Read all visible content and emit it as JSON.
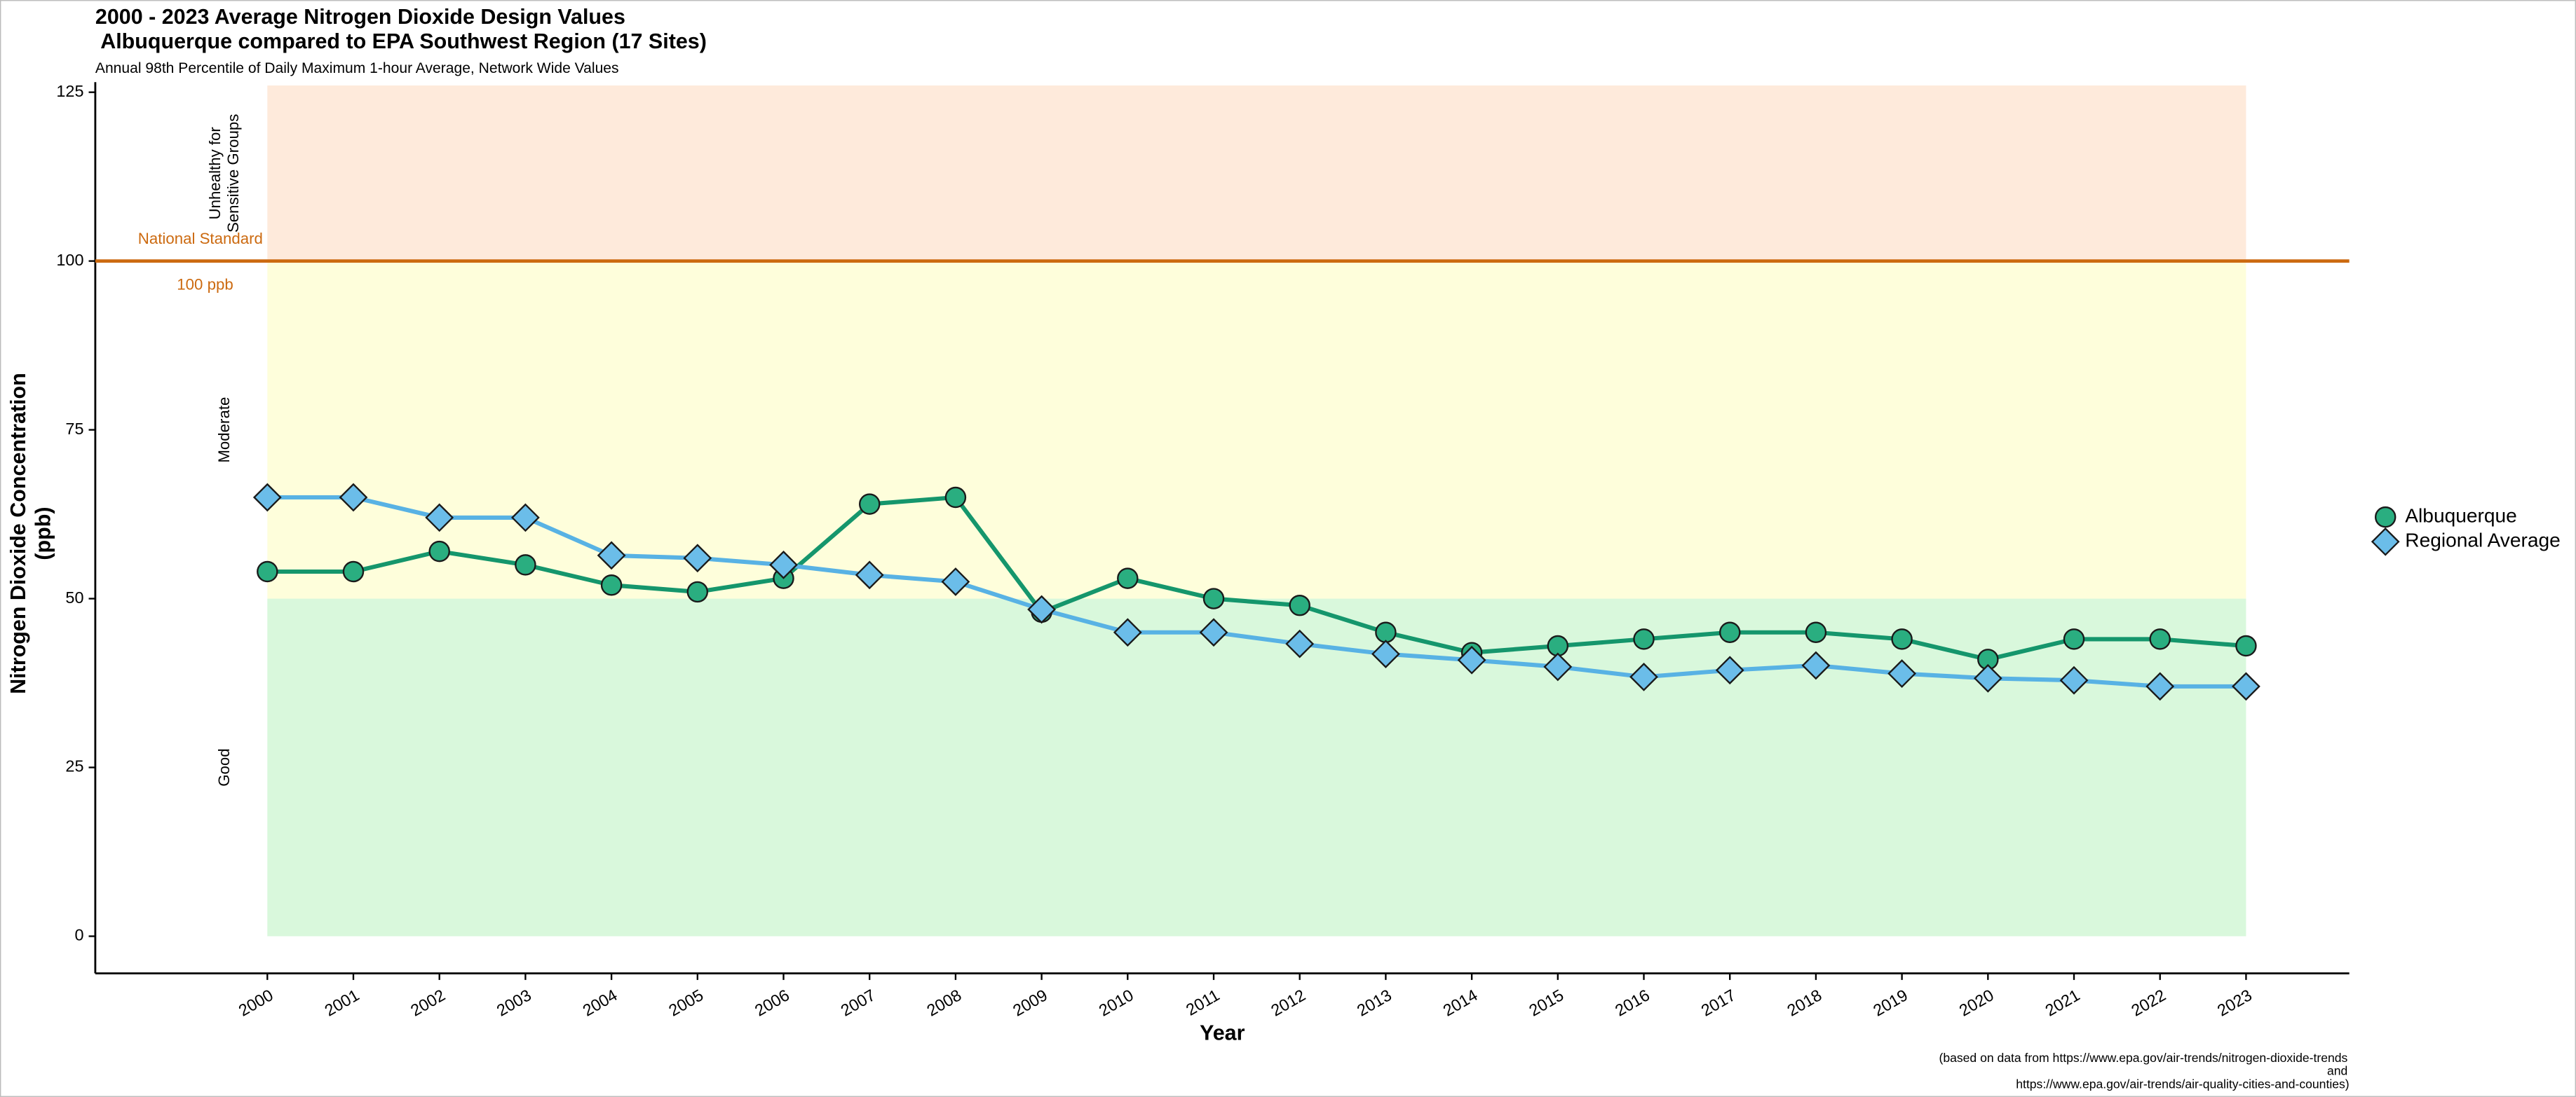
{
  "chart_data": {
    "type": "line",
    "title": [
      "2000 - 2023 Average Nitrogen Dioxide Design Values",
      " Albuquerque compared to EPA Southwest Region (17 Sites)"
    ],
    "subtitle": "Annual 98th Percentile of Daily Maximum 1-hour Average, Network Wide Values",
    "y_label": [
      "Nitrogen Dioxide Concentration",
      "(ppb)"
    ],
    "x_label": "Year",
    "caption": [
      "(based on data from https://www.epa.gov/air-trends/nitrogen-dioxide-trends",
      "and",
      "https://www.epa.gov/air-trends/air-quality-cities-and-counties)"
    ],
    "x": [
      2000,
      2001,
      2002,
      2003,
      2004,
      2005,
      2006,
      2007,
      2008,
      2009,
      2010,
      2011,
      2012,
      2013,
      2014,
      2015,
      2016,
      2017,
      2018,
      2019,
      2020,
      2021,
      2022,
      2023
    ],
    "xlim": [
      1998,
      2024.2
    ],
    "xticks": [
      2000,
      2001,
      2002,
      2003,
      2004,
      2005,
      2006,
      2007,
      2008,
      2009,
      2010,
      2011,
      2012,
      2013,
      2014,
      2015,
      2016,
      2017,
      2018,
      2019,
      2020,
      2021,
      2022,
      2023
    ],
    "ylim": [
      -5.5,
      126.5
    ],
    "yticks": [
      0,
      25,
      50,
      75,
      100,
      125
    ],
    "bands": [
      {
        "label": [
          "Good"
        ],
        "from": 0,
        "to": 50,
        "color": "#d9f8dc"
      },
      {
        "label": [
          "Moderate"
        ],
        "from": 50,
        "to": 100,
        "color": "#fefedb"
      },
      {
        "label": [
          "Unhealthy for",
          "Sensitive Groups"
        ],
        "from": 100,
        "to": 126,
        "color": "#feeadb"
      }
    ],
    "standard": {
      "value": 100,
      "label": "National Standard",
      "value_label": "100 ppb",
      "color": "#cc6a10"
    },
    "series": [
      {
        "name": "Albuquerque",
        "color": "#15966c",
        "marker_color": "#2aae80",
        "marker": "circle",
        "values": [
          54,
          54,
          57,
          55,
          52,
          51,
          53,
          64,
          65,
          48,
          53,
          50,
          49,
          45,
          42,
          43,
          44,
          45,
          45,
          44,
          41,
          44,
          44,
          43
        ]
      },
      {
        "name": "Regional Average",
        "color": "#58b2e4",
        "marker_color": "#6bbde9",
        "marker": "diamond",
        "values": [
          65,
          65,
          62,
          62,
          56.4,
          56,
          55,
          53.5,
          52.5,
          48.4,
          45,
          45,
          43.3,
          41.8,
          40.9,
          39.9,
          38.4,
          39.4,
          40.1,
          38.9,
          38.2,
          37.9,
          37,
          37
        ]
      }
    ]
  }
}
